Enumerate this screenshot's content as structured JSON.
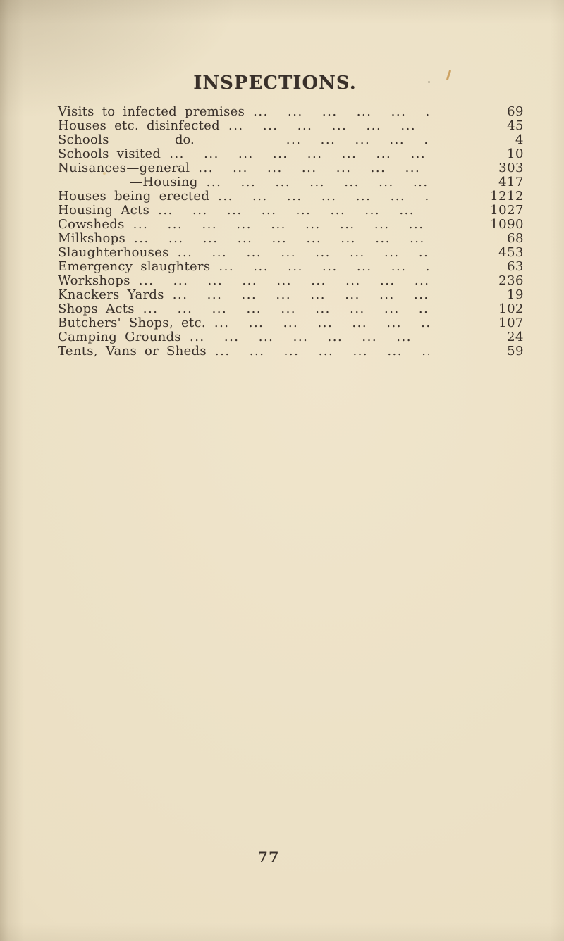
{
  "page": {
    "title": "INSPECTIONS.",
    "page_number": "77"
  },
  "table": {
    "leader_unit": "...",
    "rows": [
      {
        "label": "Visits to infected premises",
        "value": "69"
      },
      {
        "label": "Houses etc. disinfected",
        "value": "45"
      },
      {
        "label": "Schools",
        "label2": "do.",
        "wide_gap": true,
        "value": "4"
      },
      {
        "label": "Schools visited",
        "value": "10"
      },
      {
        "label": "Nuisances—general",
        "value": "303"
      },
      {
        "label": "—Housing",
        "indent": true,
        "value": "417"
      },
      {
        "label": "Houses being erected",
        "value": "1212"
      },
      {
        "label": "Housing Acts",
        "value": "1027"
      },
      {
        "label": "Cowsheds",
        "value": "1090"
      },
      {
        "label": "Milkshops",
        "value": "68"
      },
      {
        "label": "Slaughterhouses",
        "value": "453"
      },
      {
        "label": "Emergency slaughters",
        "value": "63"
      },
      {
        "label": "Workshops",
        "value": "236"
      },
      {
        "label": "Knackers Yards",
        "value": "19"
      },
      {
        "label": "Shops Acts",
        "value": "102"
      },
      {
        "label": "Butchers' Shops, etc.",
        "value": "107"
      },
      {
        "label": "Camping Grounds",
        "value": "24"
      },
      {
        "label": "Tents, Vans or Sheds",
        "value": "59"
      }
    ]
  },
  "colors": {
    "paper": "#ebdfc3",
    "ink": "#39302a",
    "pen_mark": "#c18c40"
  }
}
